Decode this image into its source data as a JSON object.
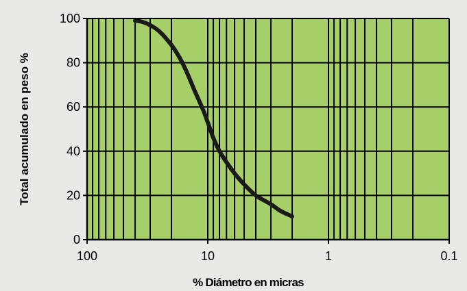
{
  "chart_data": {
    "type": "line",
    "title": "",
    "xlabel": "% Diámetro en micras",
    "ylabel": "Total acumulado en peso %",
    "x_scale": "log",
    "x_reversed": true,
    "xlim": [
      100,
      0.1
    ],
    "ylim": [
      0,
      100
    ],
    "x_ticks": [
      {
        "value": 100,
        "label": "100"
      },
      {
        "value": 10,
        "label": "10"
      },
      {
        "value": 1,
        "label": "1"
      },
      {
        "value": 0.1,
        "label": "0.1"
      }
    ],
    "y_ticks": [
      {
        "value": 0,
        "label": "0"
      },
      {
        "value": 20,
        "label": "20"
      },
      {
        "value": 40,
        "label": "40"
      },
      {
        "value": 60,
        "label": "60"
      },
      {
        "value": 80,
        "label": "80"
      },
      {
        "value": 100,
        "label": "100"
      }
    ],
    "grid": true,
    "legend": "none",
    "colors": {
      "plot_background": "#a6cf6a",
      "grid": "#000000",
      "line": "#1a1a1a",
      "page_background": "#e9eae6"
    },
    "series": [
      {
        "x": [
          40,
          35,
          30,
          25,
          20,
          17,
          15,
          13,
          11,
          10,
          9,
          8,
          7,
          6,
          5,
          4,
          3,
          2.5,
          2
        ],
        "y": [
          99,
          98.5,
          97,
          94,
          88,
          82,
          76,
          68,
          59,
          53,
          46,
          40,
          35,
          30,
          25,
          20,
          16,
          13,
          10.5
        ]
      }
    ]
  }
}
